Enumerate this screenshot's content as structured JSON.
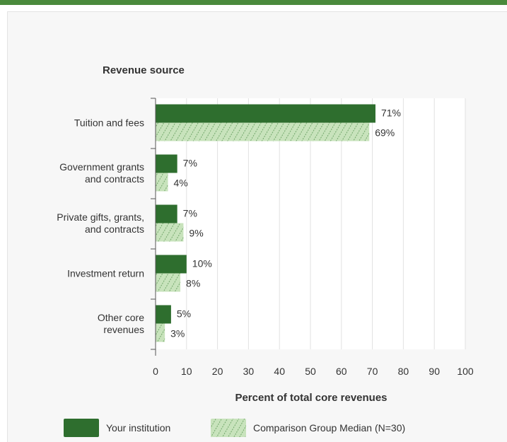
{
  "chart_data": {
    "type": "bar",
    "orientation": "horizontal",
    "y_axis_title": "Revenue source",
    "xlabel": "Percent of total core revenues",
    "categories": [
      [
        "Tuition and fees"
      ],
      [
        "Government grants",
        "and contracts"
      ],
      [
        "Private gifts, grants,",
        "and contracts"
      ],
      [
        "Investment return"
      ],
      [
        "Other core",
        "revenues"
      ]
    ],
    "series": [
      {
        "name": "Your institution",
        "values": [
          71,
          7,
          7,
          10,
          5
        ],
        "labels": [
          "71%",
          "7%",
          "7%",
          "10%",
          "5%"
        ]
      },
      {
        "name": "Comparison Group Median (N=30)",
        "values": [
          69,
          4,
          9,
          8,
          3
        ],
        "labels": [
          "69%",
          "4%",
          "9%",
          "8%",
          "3%"
        ]
      }
    ],
    "xlim": [
      0,
      100
    ],
    "xticks": [
      0,
      10,
      20,
      30,
      40,
      50,
      60,
      70,
      80,
      90,
      100
    ],
    "grid": true,
    "legend_position": "bottom",
    "colors": {
      "institution": "#2e6e2e",
      "comparison": "#c8e3bc",
      "comparison_hatch": "#5d9957"
    }
  }
}
